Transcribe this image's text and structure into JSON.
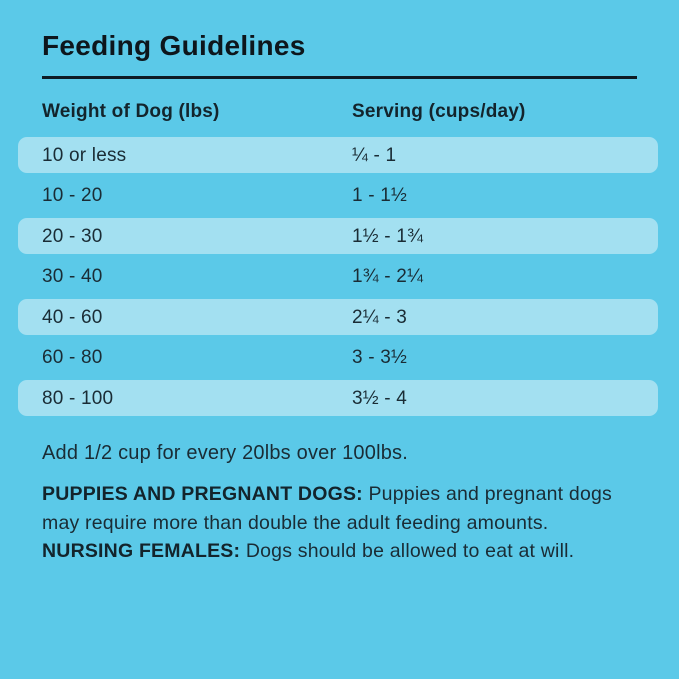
{
  "page": {
    "title": "Feeding Guidelines"
  },
  "colors": {
    "background": "#5BC9E8",
    "row_stripe": "#A3E0F1",
    "text": "#1A2C35",
    "title_text": "#0D161C",
    "divider": "#0D1B24"
  },
  "table": {
    "headers": {
      "weight": "Weight of Dog (lbs)",
      "serving": "Serving (cups/day)"
    },
    "rows": [
      {
        "weight": "10 or less",
        "serving": "¼ - 1"
      },
      {
        "weight": "10 - 20",
        "serving": "1 - 1½"
      },
      {
        "weight": "20 - 30",
        "serving": "1½ - 1¾"
      },
      {
        "weight": "30 - 40",
        "serving": "1¾ - 2¼"
      },
      {
        "weight": "40 - 60",
        "serving": "2¼ - 3"
      },
      {
        "weight": "60 - 80",
        "serving": "3 - 3½"
      },
      {
        "weight": "80 - 100",
        "serving": "3½ - 4"
      }
    ]
  },
  "notes": {
    "over_100": "Add 1/2 cup for every 20lbs over 100lbs.",
    "segments": [
      {
        "text": "PUPPIES AND PREGNANT DOGS:",
        "bold": true
      },
      {
        "text": " Puppies and pregnant dogs may require more than double the adult feeding amounts. ",
        "bold": false
      },
      {
        "text": "NURSING FEMALES:",
        "bold": true
      },
      {
        "text": " Dogs should be allowed to eat at will.",
        "bold": false
      }
    ]
  }
}
